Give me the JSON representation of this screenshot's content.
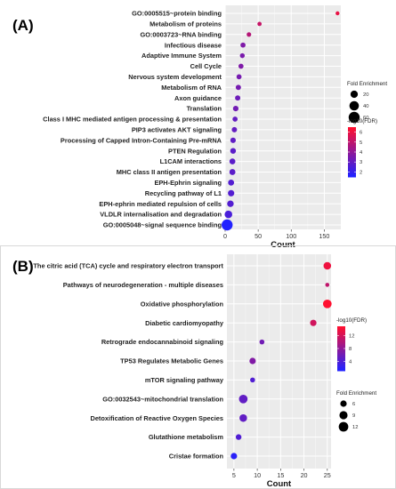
{
  "chart_data": [
    {
      "panel": "(A)",
      "type": "scatter",
      "xlabel": "Count",
      "xlim": [
        0,
        175
      ],
      "xticks": [
        0,
        50,
        100,
        150
      ],
      "categories": [
        "GO:0005515~protein binding",
        "Metabolism of proteins",
        "GO:0003723~RNA binding",
        "Infectious disease",
        "Adaptive Immune System",
        "Cell Cycle",
        "Nervous system development",
        "Metabolism of RNA",
        "Axon guidance",
        "Translation",
        "Class I MHC mediated antigen processing & presentation",
        "PIP3 activates AKT signaling",
        "Processing of Capped Intron-Containing Pre-mRNA",
        "PTEN Regulation",
        "L1CAM interactions",
        "MHC class II antigen presentation",
        "EPH-Ephrin signaling",
        "Recycling pathway of L1",
        "EPH-ephrin mediated repulsion of cells",
        "VLDLR internalisation and degradation",
        "GO:0005048~signal sequence binding"
      ],
      "count": [
        170,
        52,
        36,
        27,
        26,
        24,
        21,
        20,
        19,
        16,
        15,
        14,
        12,
        12,
        11,
        11,
        9,
        9,
        8,
        5,
        3
      ],
      "fold_enrichment": [
        2,
        3,
        4,
        6,
        5,
        6,
        6,
        7,
        7,
        8,
        6,
        7,
        8,
        9,
        10,
        11,
        11,
        13,
        14,
        22,
        60
      ],
      "neglog10_fdr": [
        6,
        5.2,
        4.8,
        3.6,
        3.5,
        3.6,
        3.4,
        3.4,
        3.2,
        3.3,
        3.0,
        3.0,
        2.9,
        2.8,
        2.8,
        2.8,
        2.6,
        2.6,
        2.6,
        2.4,
        1.5
      ],
      "size_legend": {
        "title": "Fold Enrichment",
        "values": [
          20,
          40,
          60
        ]
      },
      "color_legend": {
        "title": "-log10(FDR)",
        "ticks": [
          6,
          5,
          4,
          3,
          2
        ],
        "range": [
          1.5,
          6.5
        ],
        "low_color": "#2222ff",
        "high_color": "#ff1030"
      }
    },
    {
      "panel": "(B)",
      "type": "scatter",
      "xlabel": "Count",
      "xlim": [
        3.5,
        25.8
      ],
      "xticks": [
        5,
        10,
        15,
        20,
        25
      ],
      "categories": [
        "The citric acid (TCA) cycle and respiratory electron transport",
        "Pathways of neurodegeneration - multiple diseases",
        "Oxidative phosphorylation",
        "Diabetic cardiomyopathy",
        "Retrograde endocannabinoid signaling",
        "TP53 Regulates Metabolic Genes",
        "mTOR signaling pathway",
        "GO:0032543~mitochondrial translation",
        "Detoxification of Reactive Oxygen Species",
        "Glutathione metabolism",
        "Cristae formation"
      ],
      "count": [
        25,
        25,
        25,
        22,
        11,
        9,
        9,
        7,
        7,
        6,
        5
      ],
      "fold_enrichment": [
        8,
        3,
        10,
        6,
        4,
        6,
        4,
        10,
        8,
        5,
        6
      ],
      "neglog10_fdr": [
        14,
        11,
        15,
        12,
        6,
        7,
        4,
        5,
        5,
        4,
        1.5
      ],
      "size_legend": {
        "title": "Fold Enrichment",
        "values": [
          6,
          9,
          12
        ]
      },
      "color_legend": {
        "title": "-log10(FDR)",
        "ticks": [
          12,
          8,
          4
        ],
        "range": [
          1,
          15
        ],
        "low_color": "#2222ff",
        "high_color": "#ff1030"
      }
    }
  ]
}
